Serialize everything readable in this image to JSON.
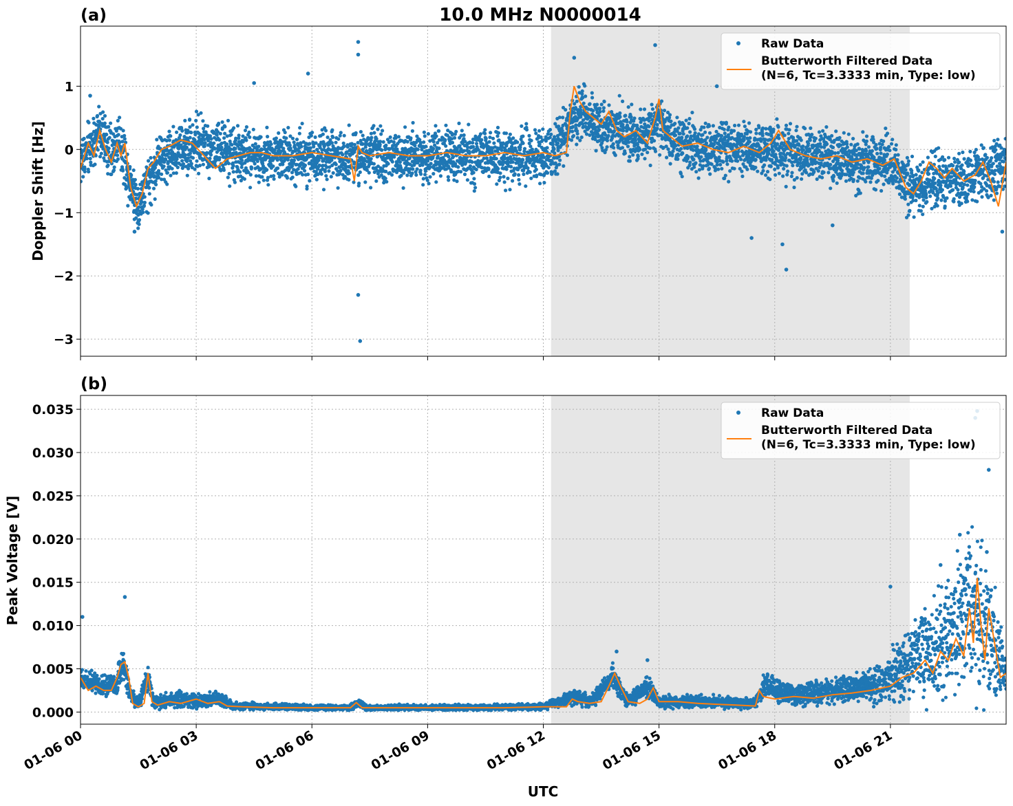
{
  "figure": {
    "title": "10.0 MHz N0000014",
    "xlabel": "UTC"
  },
  "chart_data": [
    {
      "type": "scatter",
      "panel_tag": "(a)",
      "ylabel": "Doppler Shift [Hz]",
      "x_range_hours": [
        0,
        24
      ],
      "ylim": [
        -3.27,
        1.95
      ],
      "yticks": [
        -3,
        -2,
        -1,
        0,
        1
      ],
      "ytick_labels": [
        "−3",
        "−2",
        "−1",
        "0",
        "1"
      ],
      "shaded_span_hours": [
        12.2,
        21.5
      ],
      "grid": true,
      "legend_placement": "upper-right",
      "legend": [
        "Raw Data",
        "Butterworth Filtered Data",
        "(N=6, Tc=3.3333 min, Type: low)"
      ],
      "series": [
        {
          "name": "Raw Data",
          "style": "points",
          "color": "#1f77b4",
          "band_points": [
            [
              0,
              -0.2
            ],
            [
              0.3,
              0.1
            ],
            [
              0.5,
              0.3
            ],
            [
              0.8,
              -0.1
            ],
            [
              1.0,
              0.2
            ],
            [
              1.2,
              -0.3
            ],
            [
              1.3,
              -0.5
            ],
            [
              1.5,
              -0.9
            ],
            [
              1.7,
              -0.6
            ],
            [
              2.0,
              -0.2
            ],
            [
              2.5,
              0.0
            ],
            [
              3.0,
              0.1
            ],
            [
              3.5,
              0.0
            ],
            [
              4.0,
              -0.1
            ],
            [
              5.0,
              -0.1
            ],
            [
              6.0,
              -0.1
            ],
            [
              7.0,
              -0.1
            ],
            [
              8.0,
              -0.1
            ],
            [
              9.0,
              -0.1
            ],
            [
              10.0,
              -0.1
            ],
            [
              11.0,
              -0.1
            ],
            [
              12.0,
              -0.1
            ],
            [
              12.3,
              -0.1
            ],
            [
              12.7,
              0.5
            ],
            [
              13.0,
              0.6
            ],
            [
              13.5,
              0.4
            ],
            [
              14.0,
              0.3
            ],
            [
              14.5,
              0.2
            ],
            [
              15.0,
              0.4
            ],
            [
              15.5,
              0.1
            ],
            [
              16.0,
              0.0
            ],
            [
              17.0,
              0.0
            ],
            [
              18.0,
              0.0
            ],
            [
              19.0,
              -0.1
            ],
            [
              20.0,
              -0.2
            ],
            [
              21.0,
              -0.2
            ],
            [
              21.5,
              -0.6
            ],
            [
              22.0,
              -0.5
            ],
            [
              22.5,
              -0.4
            ],
            [
              23.0,
              -0.5
            ],
            [
              23.5,
              -0.3
            ],
            [
              24.0,
              -0.2
            ]
          ],
          "band_width_hz": 0.6,
          "outliers": [
            [
              0.25,
              0.85
            ],
            [
              1.4,
              -1.3
            ],
            [
              4.5,
              1.05
            ],
            [
              5.9,
              1.2
            ],
            [
              7.2,
              1.7
            ],
            [
              7.2,
              -2.3
            ],
            [
              7.25,
              -3.03
            ],
            [
              7.2,
              1.5
            ],
            [
              12.8,
              1.45
            ],
            [
              14.9,
              1.65
            ],
            [
              16.5,
              1.0
            ],
            [
              17.4,
              -1.4
            ],
            [
              18.2,
              -1.5
            ],
            [
              18.3,
              -1.9
            ],
            [
              19.5,
              -1.2
            ],
            [
              23.9,
              -1.3
            ]
          ]
        },
        {
          "name": "Butterworth Filtered Data",
          "style": "line",
          "color": "#ff7f0e",
          "x": [
            0,
            0.2,
            0.35,
            0.5,
            0.65,
            0.8,
            0.95,
            1.05,
            1.15,
            1.3,
            1.45,
            1.6,
            1.75,
            1.9,
            2.1,
            2.3,
            2.6,
            2.9,
            3.2,
            3.5,
            3.8,
            4.1,
            4.4,
            4.7,
            5.0,
            5.5,
            6.0,
            6.5,
            7.0,
            7.1,
            7.2,
            7.3,
            7.5,
            8.0,
            8.5,
            9.0,
            9.5,
            10.0,
            10.5,
            11.0,
            11.5,
            12.0,
            12.3,
            12.6,
            12.7,
            12.8,
            12.95,
            13.1,
            13.3,
            13.5,
            13.7,
            13.9,
            14.1,
            14.4,
            14.7,
            14.9,
            15.0,
            15.1,
            15.3,
            15.6,
            16.0,
            16.4,
            16.8,
            17.2,
            17.6,
            17.9,
            18.1,
            18.4,
            18.8,
            19.2,
            19.6,
            20.0,
            20.4,
            20.8,
            21.1,
            21.4,
            21.6,
            21.8,
            22.0,
            22.2,
            22.4,
            22.6,
            22.9,
            23.2,
            23.4,
            23.6,
            23.8,
            24.0
          ],
          "y": [
            -0.3,
            0.1,
            -0.1,
            0.3,
            0.0,
            -0.2,
            0.1,
            -0.1,
            0.1,
            -0.6,
            -0.9,
            -0.7,
            -0.3,
            -0.2,
            0.0,
            0.05,
            0.15,
            0.1,
            -0.1,
            -0.3,
            -0.15,
            -0.1,
            -0.05,
            -0.05,
            -0.1,
            -0.1,
            -0.05,
            -0.1,
            -0.15,
            -0.5,
            0.05,
            -0.05,
            -0.1,
            -0.05,
            -0.1,
            -0.1,
            -0.05,
            -0.1,
            -0.1,
            -0.05,
            -0.1,
            -0.05,
            -0.1,
            -0.05,
            0.6,
            1.0,
            0.75,
            0.6,
            0.5,
            0.4,
            0.6,
            0.3,
            0.2,
            0.3,
            0.1,
            0.5,
            0.8,
            0.3,
            0.2,
            0.05,
            0.1,
            0.0,
            -0.05,
            0.05,
            -0.05,
            0.1,
            0.3,
            0.0,
            -0.1,
            -0.15,
            -0.1,
            -0.2,
            -0.15,
            -0.25,
            -0.15,
            -0.6,
            -0.7,
            -0.5,
            -0.2,
            -0.3,
            -0.45,
            -0.3,
            -0.5,
            -0.4,
            -0.2,
            -0.5,
            -0.9,
            -0.2
          ]
        }
      ]
    },
    {
      "type": "scatter",
      "panel_tag": "(b)",
      "ylabel": "Peak Voltage [V]",
      "x_range_hours": [
        0,
        24
      ],
      "ylim": [
        -0.0014,
        0.0366
      ],
      "yticks": [
        0.0,
        0.005,
        0.01,
        0.015,
        0.02,
        0.025,
        0.03,
        0.035
      ],
      "ytick_labels": [
        "0.000",
        "0.005",
        "0.010",
        "0.015",
        "0.020",
        "0.025",
        "0.030",
        "0.035"
      ],
      "shaded_span_hours": [
        12.2,
        21.5
      ],
      "grid": true,
      "legend_placement": "upper-right",
      "legend": [
        "Raw Data",
        "Butterworth Filtered Data",
        "(N=6, Tc=3.3333 min, Type: low)"
      ],
      "xtick_labels": [
        "01-06 00",
        "01-06 03",
        "01-06 06",
        "01-06 09",
        "01-06 12",
        "01-06 15",
        "01-06 18",
        "01-06 21"
      ],
      "xticks_hours": [
        0,
        3,
        6,
        9,
        12,
        15,
        18,
        21
      ],
      "series": [
        {
          "name": "Raw Data",
          "style": "points",
          "color": "#1f77b4",
          "band_points": [
            [
              0,
              0.004
            ],
            [
              0.5,
              0.003
            ],
            [
              0.9,
              0.003
            ],
            [
              1.1,
              0.006
            ],
            [
              1.3,
              0.002
            ],
            [
              1.5,
              0.001
            ],
            [
              1.75,
              0.004
            ],
            [
              1.9,
              0.001
            ],
            [
              2.3,
              0.0015
            ],
            [
              3.0,
              0.0012
            ],
            [
              3.6,
              0.0015
            ],
            [
              4.0,
              0.0007
            ],
            [
              5.0,
              0.0006
            ],
            [
              6.0,
              0.0005
            ],
            [
              7.0,
              0.0005
            ],
            [
              7.2,
              0.001
            ],
            [
              7.4,
              0.0005
            ],
            [
              9.0,
              0.0005
            ],
            [
              10.0,
              0.0005
            ],
            [
              12.0,
              0.0006
            ],
            [
              12.8,
              0.0018
            ],
            [
              13.2,
              0.0012
            ],
            [
              13.8,
              0.004
            ],
            [
              14.2,
              0.0012
            ],
            [
              14.7,
              0.003
            ],
            [
              15.0,
              0.0012
            ],
            [
              16.0,
              0.0012
            ],
            [
              17.5,
              0.001
            ],
            [
              17.7,
              0.003
            ],
            [
              18.5,
              0.002
            ],
            [
              19.5,
              0.0025
            ],
            [
              20.5,
              0.003
            ],
            [
              21.0,
              0.004
            ],
            [
              21.5,
              0.006
            ],
            [
              22.0,
              0.007
            ],
            [
              22.5,
              0.008
            ],
            [
              23.0,
              0.012
            ],
            [
              23.3,
              0.01
            ],
            [
              23.6,
              0.009
            ],
            [
              24.0,
              0.004
            ]
          ],
          "band_width_v": [
            0.0018,
            0.0018,
            0.0018,
            0.003,
            0.0015,
            0.0012,
            0.002,
            0.0012,
            0.0012,
            0.0012,
            0.0012,
            0.0006,
            0.0005,
            0.0005,
            0.0005,
            0.0006,
            0.0005,
            0.0005,
            0.0005,
            0.0005,
            0.0014,
            0.001,
            0.002,
            0.001,
            0.0018,
            0.001,
            0.001,
            0.0008,
            0.0018,
            0.0018,
            0.002,
            0.0025,
            0.004,
            0.006,
            0.008,
            0.009,
            0.012,
            0.012,
            0.01,
            0.004
          ],
          "outliers": [
            [
              0.05,
              0.011
            ],
            [
              1.15,
              0.0133
            ],
            [
              13.9,
              0.007
            ],
            [
              14.7,
              0.006
            ],
            [
              21.0,
              0.0145
            ],
            [
              22.3,
              0.017
            ],
            [
              22.8,
              0.0205
            ],
            [
              23.2,
              0.034
            ],
            [
              23.25,
              0.0348
            ],
            [
              23.55,
              0.028
            ],
            [
              23.5,
              0.0185
            ]
          ]
        },
        {
          "name": "Butterworth Filtered Data",
          "style": "line",
          "color": "#ff7f0e",
          "x": [
            0,
            0.2,
            0.4,
            0.6,
            0.8,
            0.95,
            1.05,
            1.15,
            1.25,
            1.35,
            1.5,
            1.65,
            1.75,
            1.85,
            2.0,
            2.3,
            2.6,
            3.0,
            3.3,
            3.6,
            3.8,
            4.2,
            5.0,
            6.0,
            7.0,
            7.15,
            7.3,
            8.0,
            9.0,
            10.0,
            11.0,
            12.0,
            12.6,
            12.75,
            12.9,
            13.2,
            13.5,
            13.7,
            13.85,
            14.0,
            14.2,
            14.5,
            14.7,
            14.85,
            15.0,
            15.5,
            16.0,
            16.5,
            17.0,
            17.5,
            17.6,
            17.7,
            18.0,
            18.5,
            19.0,
            19.5,
            20.0,
            20.5,
            21.0,
            21.3,
            21.6,
            21.9,
            22.1,
            22.3,
            22.5,
            22.7,
            22.9,
            23.05,
            23.15,
            23.25,
            23.35,
            23.45,
            23.55,
            23.7,
            23.85,
            24.0
          ],
          "y": [
            0.004,
            0.0025,
            0.003,
            0.0025,
            0.0025,
            0.004,
            0.0055,
            0.0058,
            0.004,
            0.001,
            0.0006,
            0.001,
            0.0045,
            0.0012,
            0.0008,
            0.0012,
            0.001,
            0.0015,
            0.001,
            0.0012,
            0.0007,
            0.0006,
            0.0005,
            0.0005,
            0.0005,
            0.0011,
            0.0005,
            0.0005,
            0.0005,
            0.0005,
            0.0005,
            0.0006,
            0.0006,
            0.0015,
            0.0012,
            0.001,
            0.0012,
            0.003,
            0.0045,
            0.003,
            0.0012,
            0.001,
            0.0015,
            0.0028,
            0.0012,
            0.0012,
            0.001,
            0.0009,
            0.0008,
            0.0007,
            0.0025,
            0.0018,
            0.0015,
            0.0018,
            0.0016,
            0.002,
            0.0022,
            0.0025,
            0.003,
            0.004,
            0.0045,
            0.006,
            0.0045,
            0.007,
            0.006,
            0.0085,
            0.0065,
            0.012,
            0.008,
            0.0155,
            0.01,
            0.006,
            0.012,
            0.008,
            0.004,
            0.0045
          ]
        }
      ]
    }
  ]
}
